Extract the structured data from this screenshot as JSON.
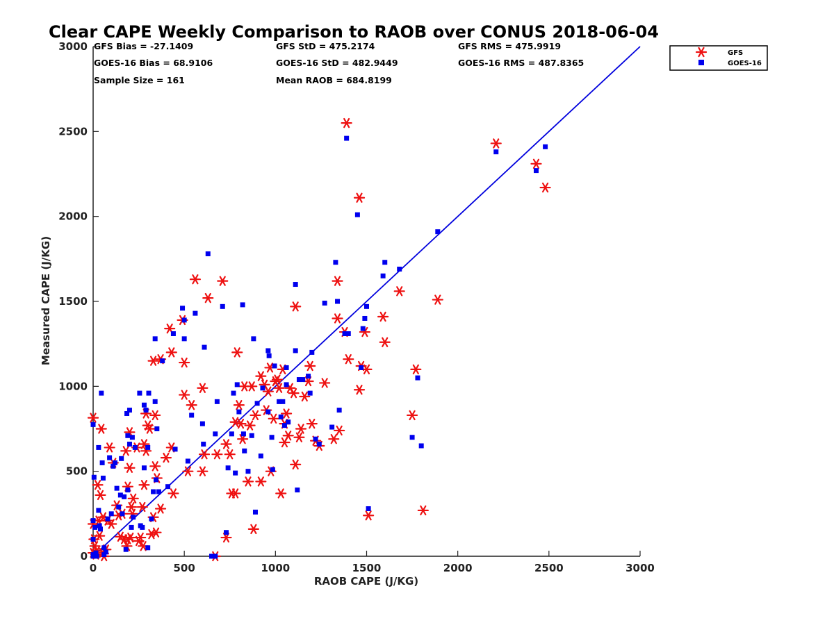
{
  "chart_data": {
    "type": "scatter",
    "title": "Clear CAPE Weekly Comparison to RAOB over CONUS 2018-06-04",
    "xlabel": "RAOB CAPE (J/KG)",
    "ylabel": "Measured CAPE (J/KG)",
    "xlim": [
      0,
      3000
    ],
    "ylim": [
      0,
      3000
    ],
    "xticks": [
      0,
      500,
      1000,
      1500,
      2000,
      2500,
      3000
    ],
    "yticks": [
      0,
      500,
      1000,
      1500,
      2000,
      2500,
      3000
    ],
    "grid": false,
    "legend_position": "top-right",
    "stats": [
      "GFS Bias = -27.1409",
      "GFS StD = 475.2174",
      "GFS RMS = 475.9919",
      "GOES-16 Bias = 68.9106",
      "GOES-16 StD = 482.9449",
      "GOES-16 RMS = 487.8365",
      "Sample Size = 161",
      "Mean RAOB = 684.8199"
    ],
    "reference_line": {
      "x": [
        0,
        3000
      ],
      "y": [
        0,
        3000
      ],
      "color": "#0000dd"
    },
    "series": [
      {
        "name": "GFS",
        "marker": "asterisk",
        "color": "#ee1111",
        "points": [
          [
            0,
            815
          ],
          [
            0,
            190
          ],
          [
            0,
            20
          ],
          [
            5,
            100
          ],
          [
            10,
            60
          ],
          [
            15,
            10
          ],
          [
            20,
            30
          ],
          [
            25,
            420
          ],
          [
            30,
            210
          ],
          [
            35,
            120
          ],
          [
            40,
            360
          ],
          [
            45,
            750
          ],
          [
            50,
            20
          ],
          [
            55,
            230
          ],
          [
            60,
            0
          ],
          [
            70,
            40
          ],
          [
            80,
            210
          ],
          [
            90,
            640
          ],
          [
            100,
            190
          ],
          [
            110,
            550
          ],
          [
            130,
            300
          ],
          [
            140,
            240
          ],
          [
            150,
            115
          ],
          [
            160,
            250
          ],
          [
            170,
            100
          ],
          [
            180,
            620
          ],
          [
            185,
            60
          ],
          [
            190,
            410
          ],
          [
            190,
            100
          ],
          [
            200,
            730
          ],
          [
            200,
            520
          ],
          [
            205,
            110
          ],
          [
            210,
            290
          ],
          [
            215,
            250
          ],
          [
            220,
            340
          ],
          [
            240,
            640
          ],
          [
            250,
            90
          ],
          [
            260,
            110
          ],
          [
            270,
            290
          ],
          [
            275,
            60
          ],
          [
            280,
            660
          ],
          [
            280,
            420
          ],
          [
            290,
            840
          ],
          [
            290,
            620
          ],
          [
            300,
            770
          ],
          [
            310,
            750
          ],
          [
            320,
            130
          ],
          [
            330,
            1150
          ],
          [
            330,
            230
          ],
          [
            340,
            830
          ],
          [
            340,
            530
          ],
          [
            345,
            140
          ],
          [
            350,
            460
          ],
          [
            370,
            1160
          ],
          [
            370,
            280
          ],
          [
            400,
            580
          ],
          [
            420,
            1340
          ],
          [
            430,
            1200
          ],
          [
            430,
            640
          ],
          [
            440,
            370
          ],
          [
            490,
            1390
          ],
          [
            500,
            1140
          ],
          [
            500,
            950
          ],
          [
            520,
            500
          ],
          [
            540,
            890
          ],
          [
            560,
            1630
          ],
          [
            600,
            990
          ],
          [
            600,
            500
          ],
          [
            610,
            600
          ],
          [
            630,
            1520
          ],
          [
            670,
            0
          ],
          [
            680,
            600
          ],
          [
            710,
            1620
          ],
          [
            730,
            110
          ],
          [
            730,
            660
          ],
          [
            750,
            600
          ],
          [
            760,
            370
          ],
          [
            780,
            370
          ],
          [
            780,
            790
          ],
          [
            790,
            1200
          ],
          [
            800,
            890
          ],
          [
            810,
            780
          ],
          [
            820,
            690
          ],
          [
            830,
            1000
          ],
          [
            850,
            440
          ],
          [
            860,
            770
          ],
          [
            870,
            1000
          ],
          [
            880,
            160
          ],
          [
            890,
            830
          ],
          [
            920,
            440
          ],
          [
            920,
            1060
          ],
          [
            940,
            1010
          ],
          [
            950,
            860
          ],
          [
            960,
            970
          ],
          [
            970,
            1110
          ],
          [
            975,
            500
          ],
          [
            990,
            810
          ],
          [
            1000,
            1030
          ],
          [
            1010,
            1040
          ],
          [
            1020,
            990
          ],
          [
            1030,
            370
          ],
          [
            1040,
            1100
          ],
          [
            1050,
            780
          ],
          [
            1050,
            670
          ],
          [
            1060,
            840
          ],
          [
            1070,
            710
          ],
          [
            1080,
            990
          ],
          [
            1100,
            960
          ],
          [
            1110,
            1470
          ],
          [
            1110,
            540
          ],
          [
            1130,
            700
          ],
          [
            1140,
            750
          ],
          [
            1160,
            940
          ],
          [
            1180,
            1030
          ],
          [
            1190,
            1120
          ],
          [
            1200,
            780
          ],
          [
            1220,
            680
          ],
          [
            1240,
            650
          ],
          [
            1270,
            1020
          ],
          [
            1320,
            690
          ],
          [
            1340,
            1620
          ],
          [
            1340,
            1400
          ],
          [
            1350,
            740
          ],
          [
            1380,
            1320
          ],
          [
            1390,
            2550
          ],
          [
            1400,
            1160
          ],
          [
            1460,
            2110
          ],
          [
            1460,
            980
          ],
          [
            1470,
            1120
          ],
          [
            1490,
            1320
          ],
          [
            1500,
            1100
          ],
          [
            1510,
            240
          ],
          [
            1590,
            1410
          ],
          [
            1600,
            1260
          ],
          [
            1680,
            1560
          ],
          [
            1750,
            830
          ],
          [
            1770,
            1100
          ],
          [
            1810,
            270
          ],
          [
            1890,
            1510
          ],
          [
            2210,
            2430
          ],
          [
            2430,
            2310
          ],
          [
            2480,
            2170
          ]
        ]
      },
      {
        "name": "GOES-16",
        "marker": "square",
        "color": "#0000ee",
        "points": [
          [
            0,
            775
          ],
          [
            0,
            210
          ],
          [
            0,
            100
          ],
          [
            0,
            10
          ],
          [
            0,
            0
          ],
          [
            5,
            465
          ],
          [
            10,
            170
          ],
          [
            15,
            20
          ],
          [
            20,
            0
          ],
          [
            30,
            640
          ],
          [
            30,
            270
          ],
          [
            35,
            180
          ],
          [
            40,
            160
          ],
          [
            45,
            960
          ],
          [
            50,
            550
          ],
          [
            55,
            460
          ],
          [
            60,
            50
          ],
          [
            60,
            10
          ],
          [
            70,
            25
          ],
          [
            80,
            220
          ],
          [
            90,
            580
          ],
          [
            100,
            250
          ],
          [
            110,
            530
          ],
          [
            120,
            550
          ],
          [
            130,
            400
          ],
          [
            140,
            290
          ],
          [
            150,
            360
          ],
          [
            155,
            575
          ],
          [
            160,
            250
          ],
          [
            170,
            350
          ],
          [
            180,
            40
          ],
          [
            185,
            840
          ],
          [
            190,
            710
          ],
          [
            190,
            390
          ],
          [
            200,
            860
          ],
          [
            200,
            660
          ],
          [
            210,
            170
          ],
          [
            215,
            700
          ],
          [
            220,
            230
          ],
          [
            230,
            640
          ],
          [
            255,
            960
          ],
          [
            260,
            180
          ],
          [
            270,
            170
          ],
          [
            280,
            890
          ],
          [
            280,
            520
          ],
          [
            290,
            860
          ],
          [
            300,
            640
          ],
          [
            300,
            50
          ],
          [
            305,
            960
          ],
          [
            320,
            220
          ],
          [
            330,
            380
          ],
          [
            340,
            910
          ],
          [
            340,
            1280
          ],
          [
            345,
            450
          ],
          [
            350,
            750
          ],
          [
            360,
            380
          ],
          [
            380,
            1150
          ],
          [
            410,
            410
          ],
          [
            440,
            1310
          ],
          [
            450,
            630
          ],
          [
            490,
            1460
          ],
          [
            500,
            1390
          ],
          [
            500,
            1280
          ],
          [
            520,
            560
          ],
          [
            540,
            830
          ],
          [
            560,
            1430
          ],
          [
            600,
            780
          ],
          [
            605,
            660
          ],
          [
            610,
            1230
          ],
          [
            630,
            1780
          ],
          [
            650,
            0
          ],
          [
            670,
            720
          ],
          [
            670,
            0
          ],
          [
            680,
            910
          ],
          [
            710,
            1470
          ],
          [
            730,
            140
          ],
          [
            740,
            520
          ],
          [
            760,
            720
          ],
          [
            770,
            960
          ],
          [
            780,
            490
          ],
          [
            790,
            1010
          ],
          [
            800,
            850
          ],
          [
            820,
            1480
          ],
          [
            825,
            720
          ],
          [
            830,
            620
          ],
          [
            850,
            500
          ],
          [
            870,
            710
          ],
          [
            880,
            1280
          ],
          [
            890,
            260
          ],
          [
            900,
            900
          ],
          [
            920,
            590
          ],
          [
            930,
            990
          ],
          [
            960,
            850
          ],
          [
            960,
            1210
          ],
          [
            965,
            1180
          ],
          [
            980,
            700
          ],
          [
            985,
            510
          ],
          [
            995,
            1120
          ],
          [
            1020,
            910
          ],
          [
            1030,
            820
          ],
          [
            1040,
            910
          ],
          [
            1050,
            770
          ],
          [
            1060,
            1110
          ],
          [
            1060,
            1010
          ],
          [
            1070,
            790
          ],
          [
            1110,
            1600
          ],
          [
            1110,
            1210
          ],
          [
            1120,
            390
          ],
          [
            1130,
            1040
          ],
          [
            1150,
            1040
          ],
          [
            1180,
            1060
          ],
          [
            1190,
            960
          ],
          [
            1200,
            1200
          ],
          [
            1220,
            690
          ],
          [
            1240,
            660
          ],
          [
            1270,
            1490
          ],
          [
            1310,
            760
          ],
          [
            1330,
            1730
          ],
          [
            1340,
            1500
          ],
          [
            1350,
            860
          ],
          [
            1380,
            1310
          ],
          [
            1390,
            2460
          ],
          [
            1400,
            1310
          ],
          [
            1450,
            2010
          ],
          [
            1470,
            1110
          ],
          [
            1480,
            1340
          ],
          [
            1490,
            1400
          ],
          [
            1500,
            1470
          ],
          [
            1510,
            280
          ],
          [
            1590,
            1650
          ],
          [
            1600,
            1730
          ],
          [
            1680,
            1690
          ],
          [
            1750,
            700
          ],
          [
            1780,
            1050
          ],
          [
            1800,
            650
          ],
          [
            1890,
            1910
          ],
          [
            2210,
            2380
          ],
          [
            2430,
            2270
          ],
          [
            2480,
            2410
          ]
        ]
      }
    ]
  }
}
